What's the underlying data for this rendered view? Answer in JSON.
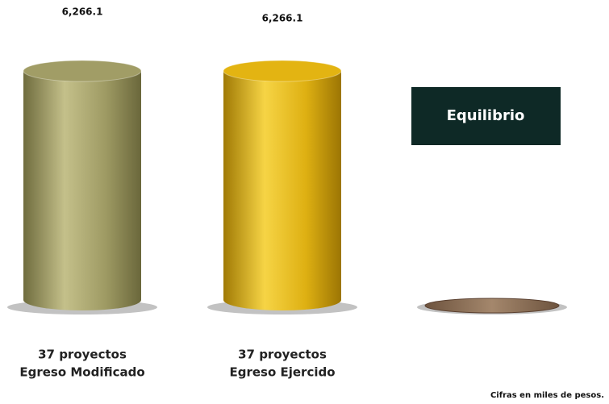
{
  "chart_data": {
    "type": "cylinder-bar",
    "categories": [
      [
        "37 proyectos",
        "Egreso Modificado"
      ],
      [
        "37 proyectos",
        "Egreso Ejercido"
      ],
      null
    ],
    "values": [
      6266.1,
      6266.1,
      0
    ],
    "value_labels": [
      "6,266.1",
      "6,266.1",
      null
    ],
    "colors": [
      "#a19d66",
      "#e3b412",
      "#8c6f55"
    ],
    "annotation": "Equilibrio",
    "footnote": "Cifras en miles de pesos."
  }
}
